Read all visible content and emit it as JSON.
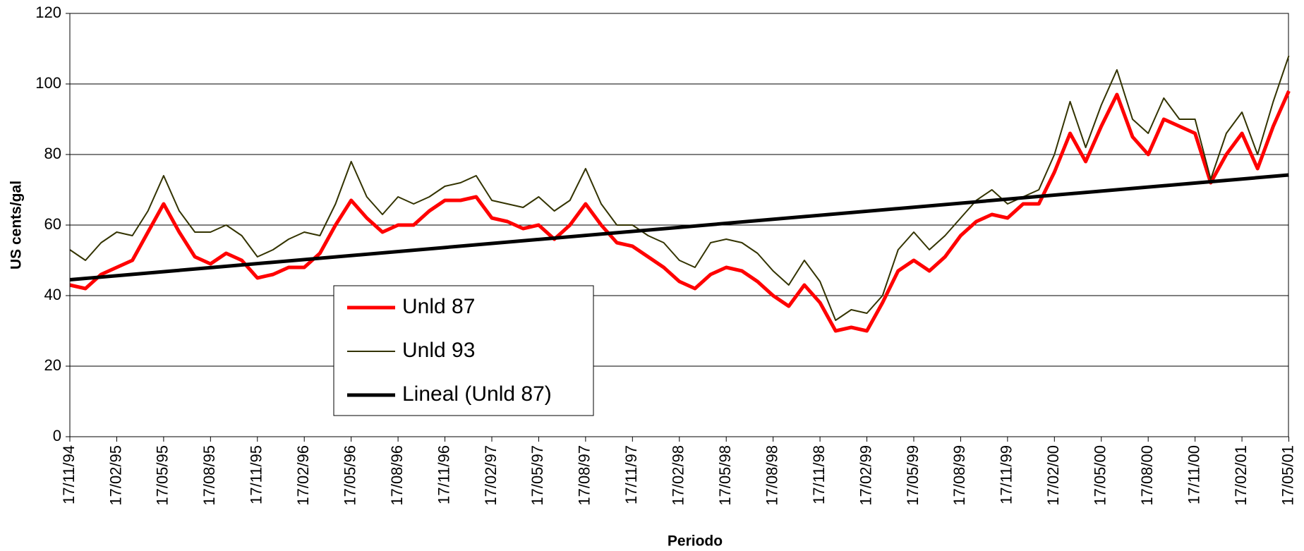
{
  "chart_data": {
    "type": "line",
    "x_label": "Periodo",
    "y_label": "US cents/gal",
    "x": [
      "17/11/94",
      "17/12/94",
      "17/01/95",
      "17/02/95",
      "17/03/95",
      "17/04/95",
      "17/05/95",
      "17/06/95",
      "17/07/95",
      "17/08/95",
      "17/09/95",
      "17/10/95",
      "17/11/95",
      "17/12/95",
      "17/01/96",
      "17/02/96",
      "17/03/96",
      "17/04/96",
      "17/05/96",
      "17/06/96",
      "17/07/96",
      "17/08/96",
      "17/09/96",
      "17/10/96",
      "17/11/96",
      "17/12/96",
      "17/01/97",
      "17/02/97",
      "17/03/97",
      "17/04/97",
      "17/05/97",
      "17/06/97",
      "17/07/97",
      "17/08/97",
      "17/09/97",
      "17/10/97",
      "17/11/97",
      "17/12/97",
      "17/01/98",
      "17/02/98",
      "17/03/98",
      "17/04/98",
      "17/05/98",
      "17/06/98",
      "17/07/98",
      "17/08/98",
      "17/09/98",
      "17/10/98",
      "17/11/98",
      "17/12/98",
      "17/01/99",
      "17/02/99",
      "17/03/99",
      "17/04/99",
      "17/05/99",
      "17/06/99",
      "17/07/99",
      "17/08/99",
      "17/09/99",
      "17/10/99",
      "17/11/99",
      "17/12/99",
      "17/01/00",
      "17/02/00",
      "17/03/00",
      "17/04/00",
      "17/05/00",
      "17/06/00",
      "17/07/00",
      "17/08/00",
      "17/09/00",
      "17/10/00",
      "17/11/00",
      "17/12/00",
      "17/01/01",
      "17/02/01",
      "17/03/01",
      "17/04/01",
      "17/05/01"
    ],
    "series": [
      {
        "name": "Unld 87",
        "color": "#ff0000",
        "width": 5,
        "values": [
          43,
          42,
          46,
          48,
          50,
          58,
          66,
          58,
          51,
          49,
          52,
          50,
          45,
          46,
          48,
          48,
          52,
          60,
          67,
          62,
          58,
          60,
          60,
          64,
          67,
          67,
          68,
          62,
          61,
          59,
          60,
          56,
          60,
          66,
          60,
          55,
          54,
          51,
          48,
          44,
          42,
          46,
          48,
          47,
          44,
          40,
          37,
          43,
          38,
          30,
          31,
          30,
          38,
          47,
          50,
          47,
          51,
          57,
          61,
          63,
          62,
          66,
          66,
          75,
          86,
          78,
          88,
          97,
          85,
          80,
          90,
          88,
          86,
          72,
          80,
          86,
          76,
          88,
          98
        ]
      },
      {
        "name": "Unld 93",
        "color": "#333300",
        "width": 2,
        "values": [
          53,
          50,
          55,
          58,
          57,
          64,
          74,
          64,
          58,
          58,
          60,
          57,
          51,
          53,
          56,
          58,
          57,
          66,
          78,
          68,
          63,
          68,
          66,
          68,
          71,
          72,
          74,
          67,
          66,
          65,
          68,
          64,
          67,
          76,
          66,
          60,
          60,
          57,
          55,
          50,
          48,
          55,
          56,
          55,
          52,
          47,
          43,
          50,
          44,
          33,
          36,
          35,
          40,
          53,
          58,
          53,
          57,
          62,
          67,
          70,
          66,
          68,
          70,
          80,
          95,
          82,
          94,
          104,
          90,
          86,
          96,
          90,
          90,
          73,
          86,
          92,
          80,
          95,
          108
        ]
      }
    ],
    "trendline": {
      "name": "Lineal (Unld 87)",
      "color": "#000000",
      "width": 5,
      "x": [
        "17/11/94",
        "17/05/01"
      ],
      "values": [
        44.5,
        74.2
      ]
    },
    "xticks": [
      "17/11/94",
      "17/02/95",
      "17/05/95",
      "17/08/95",
      "17/11/95",
      "17/02/96",
      "17/05/96",
      "17/08/96",
      "17/11/96",
      "17/02/97",
      "17/05/97",
      "17/08/97",
      "17/11/97",
      "17/02/98",
      "17/05/98",
      "17/08/98",
      "17/11/98",
      "17/02/99",
      "17/05/99",
      "17/08/99",
      "17/11/99",
      "17/02/00",
      "17/05/00",
      "17/08/00",
      "17/11/00",
      "17/02/01",
      "17/05/01"
    ],
    "ylim": [
      0,
      120
    ],
    "yticks": [
      0,
      20,
      40,
      60,
      80,
      100,
      120
    ],
    "grid": true
  }
}
